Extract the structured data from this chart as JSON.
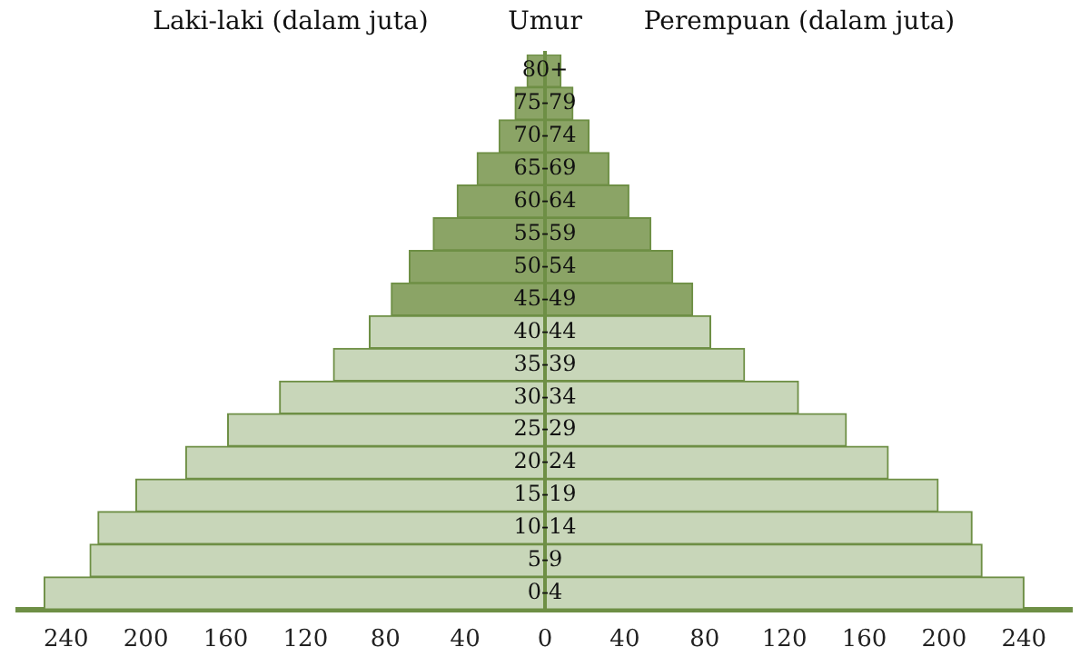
{
  "chart_data": {
    "type": "bar",
    "orientation": "horizontal",
    "stacked": true,
    "ylabel": "Umur",
    "annotations": [
      "Laki-laki (dalam juta)",
      "Perempuan (dalam juta)"
    ],
    "categories": [
      "80+",
      "75-79",
      "70-74",
      "65-69",
      "60-64",
      "55-59",
      "50-54",
      "45-49",
      "40-44",
      "35-39",
      "30-34",
      "25-29",
      "20-24",
      "15-19",
      "10-14",
      "5-9",
      "0-4"
    ],
    "series": [
      {
        "colors": [
          "#8ba466",
          "#8ba466",
          "#8ba466",
          "#8ba466",
          "#8ba466",
          "#8ba466",
          "#8ba466",
          "#8ba466",
          "#c8d6b9",
          "#c8d6b9",
          "#c8d6b9",
          "#c8d6b9",
          "#c8d6b9",
          "#c8d6b9",
          "#c8d6b9",
          "#c8d6b9",
          "#c8d6b9"
        ],
        "values": [
          -9,
          -15,
          -23,
          -34,
          -44,
          -56,
          -68,
          -77,
          -88,
          -106,
          -133,
          -159,
          -180,
          -205,
          -224,
          -228,
          -251
        ]
      },
      {
        "colors": [
          "#8ba466",
          "#8ba466",
          "#8ba466",
          "#8ba466",
          "#8ba466",
          "#8ba466",
          "#8ba466",
          "#8ba466",
          "#c8d6b9",
          "#c8d6b9",
          "#c8d6b9",
          "#c8d6b9",
          "#c8d6b9",
          "#c8d6b9",
          "#c8d6b9",
          "#c8d6b9",
          "#c8d6b9"
        ],
        "values": [
          8,
          14,
          22,
          32,
          42,
          53,
          64,
          74,
          83,
          100,
          127,
          151,
          172,
          197,
          214,
          219,
          240
        ]
      }
    ],
    "xlim": [
      -264,
      264
    ],
    "xticks": [
      {
        "value": -240,
        "label": "240"
      },
      {
        "value": -200,
        "label": "200"
      },
      {
        "value": -160,
        "label": "160"
      },
      {
        "value": -120,
        "label": "120"
      },
      {
        "value": -80,
        "label": "80"
      },
      {
        "value": -40,
        "label": "40"
      },
      0,
      40,
      80,
      120,
      160,
      200,
      240
    ],
    "grid": false,
    "legend": false
  }
}
